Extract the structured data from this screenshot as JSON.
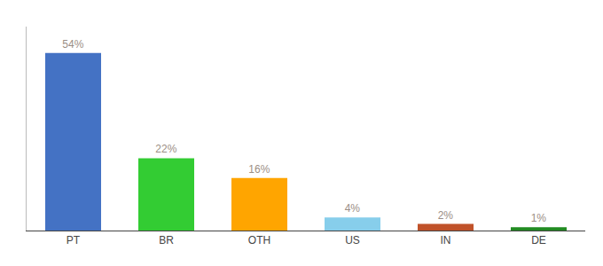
{
  "chart_data": {
    "type": "bar",
    "categories": [
      "PT",
      "BR",
      "OTH",
      "US",
      "IN",
      "DE"
    ],
    "values": [
      54,
      22,
      16,
      4,
      2,
      1
    ],
    "value_labels": [
      "54%",
      "22%",
      "16%",
      "4%",
      "2%",
      "1%"
    ],
    "colors": [
      "#4472C4",
      "#33CC33",
      "#FFA500",
      "#87CEEB",
      "#C0522A",
      "#228B22"
    ],
    "ylim": [
      0,
      62
    ],
    "data_labels": true,
    "tick_labels": "x",
    "grid": false
  }
}
